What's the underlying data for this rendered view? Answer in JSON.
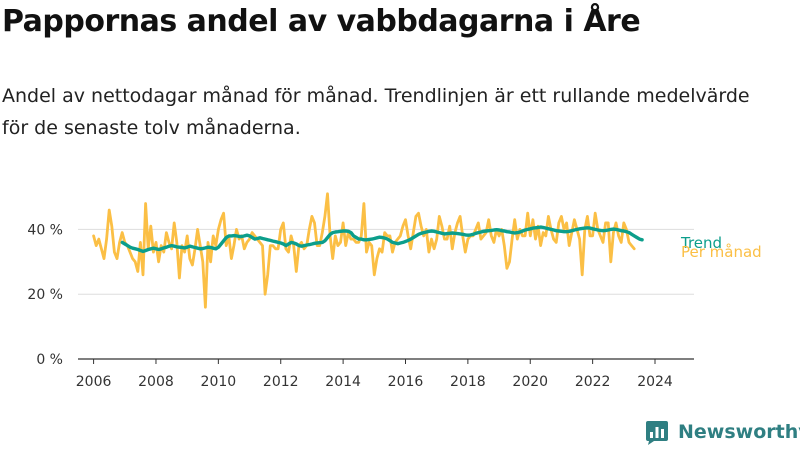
{
  "title": "Pappornas andel av vabbdagarna i Åre",
  "subtitle": "Andel av nettodagar månad för månad. Trendlinjen är ett rullande medelvärde för de senaste tolv månaderna.",
  "brand": {
    "name": "Newsworthy",
    "color": "#2f7f82"
  },
  "chart_data": {
    "type": "line",
    "title": "Pappornas andel av vabbdagarna i Åre",
    "xlabel": "",
    "ylabel": "",
    "xlim": [
      2005.5,
      2025.25
    ],
    "ylim": [
      0,
      50
    ],
    "x_ticks": [
      {
        "value": 2006,
        "label": "2006"
      },
      {
        "value": 2008,
        "label": "2008"
      },
      {
        "value": 2010,
        "label": "2010"
      },
      {
        "value": 2012,
        "label": "2012"
      },
      {
        "value": 2014,
        "label": "2014"
      },
      {
        "value": 2016,
        "label": "2016"
      },
      {
        "value": 2018,
        "label": "2018"
      },
      {
        "value": 2020,
        "label": "2020"
      },
      {
        "value": 2022,
        "label": "2022"
      },
      {
        "value": 2024,
        "label": "2024"
      }
    ],
    "y_ticks": [
      {
        "value": 0,
        "label": "0 %"
      },
      {
        "value": 20,
        "label": "20 %"
      },
      {
        "value": 40,
        "label": "40 %"
      }
    ],
    "series": [
      {
        "name": "Per månad",
        "color": "#fbbf45",
        "start": 2006.0,
        "step": 0.0833333,
        "values": [
          38,
          35,
          37,
          34,
          31,
          37,
          46,
          41,
          33,
          31,
          36,
          39,
          36,
          35,
          33,
          31,
          30,
          27,
          36,
          26,
          48,
          34,
          41,
          33,
          36,
          30,
          35,
          33,
          39,
          36,
          34,
          42,
          36,
          25,
          35,
          33,
          38,
          31,
          29,
          34,
          40,
          35,
          30,
          16,
          36,
          30,
          38,
          35,
          40,
          43,
          45,
          35,
          38,
          31,
          35,
          40,
          37,
          38,
          34,
          36,
          37,
          39,
          38,
          37,
          36,
          35,
          20,
          26,
          35,
          35,
          34,
          34,
          40,
          42,
          34,
          33,
          38,
          35,
          27,
          35,
          36,
          34,
          35,
          40,
          44,
          42,
          35,
          35,
          39,
          44,
          51,
          38,
          31,
          38,
          35,
          36,
          42,
          35,
          39,
          37,
          37,
          36,
          36,
          38,
          48,
          33,
          36,
          35,
          26,
          31,
          34,
          33,
          39,
          38,
          38,
          33,
          36,
          37,
          38,
          41,
          43,
          38,
          34,
          39,
          44,
          45,
          41,
          38,
          40,
          33,
          37,
          34,
          37,
          44,
          41,
          37,
          37,
          41,
          34,
          39,
          42,
          44,
          38,
          33,
          37,
          38,
          38,
          40,
          42,
          37,
          38,
          39,
          43,
          38,
          36,
          40,
          38,
          40,
          35,
          28,
          30,
          37,
          43,
          37,
          40,
          38,
          38,
          45,
          38,
          43,
          37,
          41,
          35,
          39,
          38,
          44,
          40,
          37,
          36,
          42,
          44,
          40,
          42,
          35,
          39,
          43,
          40,
          37,
          26,
          40,
          44,
          38,
          38,
          45,
          40,
          38,
          36,
          42,
          42,
          30,
          39,
          42,
          38,
          36,
          42,
          40,
          36,
          35,
          34
        ]
      },
      {
        "name": "Trend",
        "color": "#0c9e8b",
        "start": 2006.92,
        "step": 0.0833333,
        "values": [
          36,
          35.5,
          35,
          34.5,
          34.2,
          34,
          33.8,
          33.5,
          33.2,
          33.5,
          33.8,
          34,
          34.2,
          34,
          33.8,
          34,
          34.3,
          34.5,
          34.8,
          35,
          34.8,
          34.6,
          34.5,
          34.4,
          34.3,
          34.5,
          34.8,
          34.6,
          34.4,
          34.2,
          34,
          34.1,
          34.3,
          34.5,
          34.4,
          34.2,
          34,
          34.5,
          35.5,
          36.5,
          37.5,
          38,
          38,
          38.1,
          38,
          37.8,
          37.8,
          38,
          38.2,
          38,
          37.5,
          37,
          37.2,
          37.4,
          37.2,
          37,
          36.8,
          36.6,
          36.4,
          36.2,
          36,
          35.8,
          35.5,
          35,
          35.5,
          36,
          35.8,
          35.5,
          35,
          34.8,
          35,
          35.2,
          35.3,
          35.5,
          35.7,
          35.8,
          35.9,
          36,
          36.5,
          37.5,
          38.5,
          39,
          39.2,
          39.3,
          39.4,
          39.5,
          39.5,
          39.4,
          39,
          38,
          37.5,
          37,
          37,
          36.8,
          36.8,
          36.9,
          37,
          37.2,
          37.4,
          37.6,
          37.5,
          37.3,
          37,
          36.5,
          36,
          35.8,
          35.6,
          35.8,
          36,
          36.3,
          36.6,
          37,
          37.5,
          38,
          38.5,
          38.8,
          39,
          39.2,
          39.4,
          39.5,
          39.4,
          39.2,
          39,
          38.8,
          38.6,
          38.7,
          38.8,
          38.9,
          38.8,
          38.7,
          38.6,
          38.5,
          38.3,
          38.2,
          38.3,
          38.5,
          38.8,
          39,
          39.2,
          39.4,
          39.5,
          39.6,
          39.7,
          39.8,
          39.9,
          39.8,
          39.6,
          39.5,
          39.3,
          39.2,
          39,
          38.9,
          39,
          39.2,
          39.5,
          39.8,
          40,
          40.2,
          40.4,
          40.5,
          40.6,
          40.7,
          40.6,
          40.4,
          40.2,
          40,
          39.8,
          39.6,
          39.5,
          39.4,
          39.3,
          39.3,
          39.4,
          39.6,
          39.8,
          40,
          40.2,
          40.3,
          40.4,
          40.5,
          40.4,
          40.2,
          40,
          39.8,
          39.7,
          39.6,
          39.7,
          39.8,
          40,
          40.1,
          40,
          39.8,
          39.6,
          39.5,
          39.3,
          39,
          38.5,
          38,
          37.5,
          37,
          36.8
        ]
      }
    ]
  }
}
